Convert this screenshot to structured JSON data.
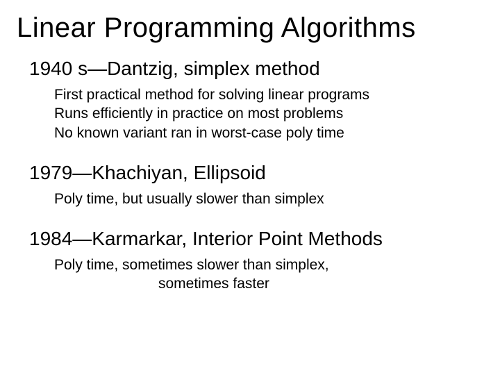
{
  "title": "Linear Programming Algorithms",
  "sections": [
    {
      "heading": "1940 s—Dantzig, simplex method",
      "lines": [
        {
          "text": "First practical method for solving linear programs",
          "indent": false
        },
        {
          "text": "Runs efficiently in practice on most problems",
          "indent": false
        },
        {
          "text": "No known variant ran in worst-case poly time",
          "indent": false
        }
      ]
    },
    {
      "heading": "1979—Khachiyan, Ellipsoid",
      "lines": [
        {
          "text": "Poly time, but usually slower than simplex",
          "indent": false
        }
      ]
    },
    {
      "heading": "1984—Karmarkar, Interior Point Methods",
      "lines": [
        {
          "text": "Poly time, sometimes slower than simplex,",
          "indent": false
        },
        {
          "text": "sometimes faster",
          "indent": true
        }
      ]
    }
  ],
  "colors": {
    "background": "#ffffff",
    "text": "#000000"
  },
  "typography": {
    "title_fontsize": 40,
    "heading_fontsize": 28,
    "body_fontsize": 21,
    "font_family": "Arial"
  }
}
